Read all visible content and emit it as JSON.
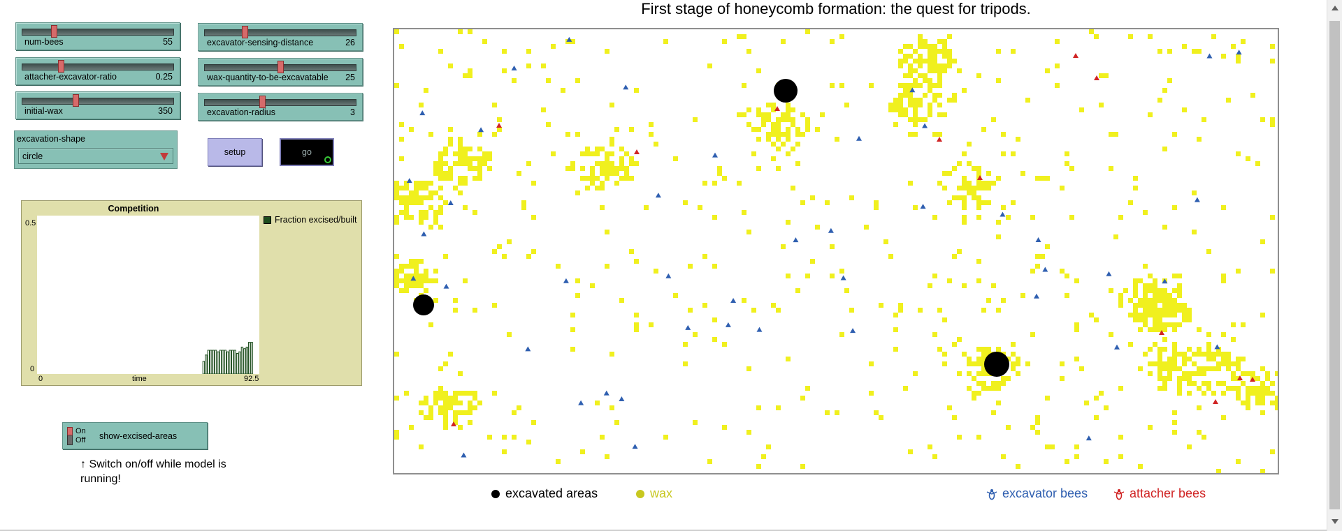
{
  "view": {
    "title": "First stage of honeycomb formation: the quest for tripods.",
    "colors": {
      "wax": "#f0f01e",
      "excavated": "#000000",
      "excavator": "#2f5fb0",
      "attacher": "#d02424"
    }
  },
  "sliders": [
    {
      "label": "num-bees",
      "value": "55",
      "fraction": 0.2
    },
    {
      "label": "attacher-excavator-ratio",
      "value": "0.25",
      "fraction": 0.25
    },
    {
      "label": "initial-wax",
      "value": "350",
      "fraction": 0.35
    },
    {
      "label": "excavator-sensing-distance",
      "value": "26",
      "fraction": 0.26
    },
    {
      "label": "wax-quantity-to-be-excavatable",
      "value": "25",
      "fraction": 0.5
    },
    {
      "label": "excavation-radius",
      "value": "3",
      "fraction": 0.38
    }
  ],
  "chooser": {
    "label": "excavation-shape",
    "value": "circle"
  },
  "buttons": {
    "setup": "setup",
    "go": "go"
  },
  "plot": {
    "title": "Competition",
    "y_max": "0.5",
    "y_min": "0",
    "x_min": "0",
    "x_label": "time",
    "x_max": "92.5",
    "legend": "Fraction excised/built"
  },
  "switch": {
    "on": "On",
    "off": "Off",
    "label": "show-excised-areas"
  },
  "note": "↑ Switch on/off while model is running!",
  "legend": {
    "excavated": "excavated areas",
    "wax": "wax",
    "excavator": "excavator bees",
    "attacher": "attacher bees"
  },
  "chart_data": {
    "type": "bar",
    "title": "Competition",
    "xlabel": "time",
    "ylabel": "",
    "xlim": [
      0,
      92.5
    ],
    "ylim": [
      0,
      0.5
    ],
    "series": [
      {
        "name": "Fraction excised/built",
        "x": [
          69,
          70,
          71,
          72,
          73,
          74,
          75,
          76,
          77,
          78,
          79,
          80,
          81,
          82,
          83,
          84,
          85,
          86,
          87,
          88,
          89
        ],
        "values": [
          0.04,
          0.06,
          0.075,
          0.075,
          0.075,
          0.075,
          0.07,
          0.075,
          0.075,
          0.075,
          0.07,
          0.075,
          0.075,
          0.075,
          0.065,
          0.07,
          0.085,
          0.08,
          0.085,
          0.1,
          0.1
        ]
      }
    ]
  }
}
